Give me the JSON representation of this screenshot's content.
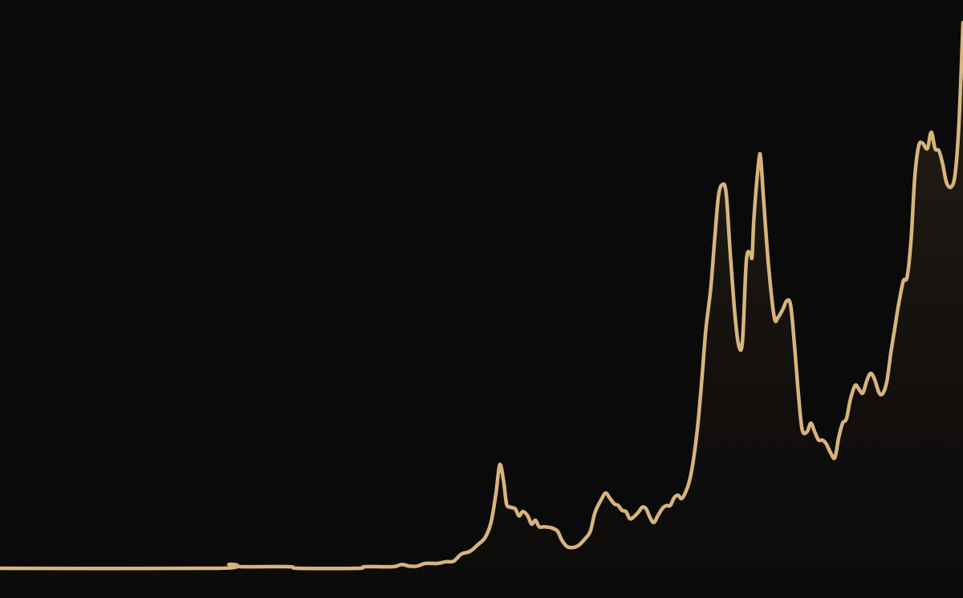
{
  "chart_data": {
    "type": "area",
    "title": "",
    "xlabel": "",
    "ylabel": "",
    "xlim": [
      0,
      100
    ],
    "ylim": [
      0,
      100
    ],
    "grid": false,
    "axes_visible": false,
    "legend": "none",
    "colors": {
      "background": "#0b0a0a",
      "line": "#d8b47c",
      "fill_top": "#2a2319",
      "fill_bottom": "#0e0c0b"
    },
    "series": [
      {
        "points": [
          [
            0,
            0
          ],
          [
            22.5,
            0
          ],
          [
            23.8,
            0.7
          ],
          [
            24.6,
            0.6
          ],
          [
            25,
            0.3
          ],
          [
            30,
            0.3
          ],
          [
            31,
            0
          ],
          [
            37.1,
            0
          ],
          [
            37.9,
            0.3
          ],
          [
            40.8,
            0.3
          ],
          [
            41.7,
            0.7
          ],
          [
            42.5,
            0.4
          ],
          [
            43.3,
            0.4
          ],
          [
            44.2,
            0.9
          ],
          [
            45.4,
            0.9
          ],
          [
            46.3,
            1.2
          ],
          [
            47.1,
            1.3
          ],
          [
            47.9,
            2.6
          ],
          [
            48.8,
            3.1
          ],
          [
            49.6,
            4.3
          ],
          [
            50.4,
            5.7
          ],
          [
            51,
            8.5
          ],
          [
            51.5,
            13.7
          ],
          [
            51.9,
            19
          ],
          [
            52.3,
            15.9
          ],
          [
            52.6,
            11.8
          ],
          [
            53,
            11.2
          ],
          [
            53.5,
            10.9
          ],
          [
            53.9,
            9.6
          ],
          [
            54.3,
            10.4
          ],
          [
            54.8,
            9.6
          ],
          [
            55.2,
            8.1
          ],
          [
            55.6,
            8.8
          ],
          [
            56,
            7.6
          ],
          [
            56.5,
            7.6
          ],
          [
            57.3,
            7.4
          ],
          [
            57.9,
            6.8
          ],
          [
            58.3,
            5.3
          ],
          [
            58.8,
            4.1
          ],
          [
            59.3,
            3.8
          ],
          [
            60,
            4.1
          ],
          [
            60.7,
            5.3
          ],
          [
            61.3,
            6.8
          ],
          [
            61.8,
            10.3
          ],
          [
            62.5,
            12.8
          ],
          [
            62.9,
            13.8
          ],
          [
            63.3,
            12.9
          ],
          [
            63.8,
            11.8
          ],
          [
            64.2,
            11.5
          ],
          [
            64.6,
            10.6
          ],
          [
            65,
            10.4
          ],
          [
            65.4,
            9.1
          ],
          [
            65.8,
            9.4
          ],
          [
            66.3,
            10.3
          ],
          [
            66.7,
            11.2
          ],
          [
            67.1,
            10.9
          ],
          [
            67.5,
            9.3
          ],
          [
            67.9,
            8.4
          ],
          [
            68.3,
            9.6
          ],
          [
            68.8,
            11
          ],
          [
            69.2,
            11.5
          ],
          [
            69.6,
            11.5
          ],
          [
            70,
            12.9
          ],
          [
            70.4,
            13.4
          ],
          [
            70.8,
            12.8
          ],
          [
            71.3,
            14.4
          ],
          [
            71.7,
            16.8
          ],
          [
            72.1,
            21
          ],
          [
            72.5,
            26.9
          ],
          [
            72.9,
            35
          ],
          [
            73.3,
            43.8
          ],
          [
            73.8,
            51.2
          ],
          [
            74.2,
            60
          ],
          [
            74.6,
            68.1
          ],
          [
            75,
            70.3
          ],
          [
            75.4,
            68.8
          ],
          [
            75.8,
            58.5
          ],
          [
            76.3,
            46.8
          ],
          [
            76.7,
            40.9
          ],
          [
            77.1,
            41.6
          ],
          [
            77.5,
            56.3
          ],
          [
            77.9,
            57.8
          ],
          [
            78.1,
            57.1
          ],
          [
            78.3,
            64.4
          ],
          [
            78.8,
            74.7
          ],
          [
            79,
            75
          ],
          [
            79.3,
            67.4
          ],
          [
            79.8,
            55.6
          ],
          [
            80.4,
            46
          ],
          [
            80.8,
            46
          ],
          [
            81.3,
            47.5
          ],
          [
            81.7,
            49
          ],
          [
            82.1,
            48.2
          ],
          [
            82.5,
            40.9
          ],
          [
            82.9,
            32.1
          ],
          [
            83.3,
            25.4
          ],
          [
            83.8,
            25
          ],
          [
            84.2,
            26.6
          ],
          [
            84.6,
            25
          ],
          [
            85,
            23.5
          ],
          [
            85.4,
            23.5
          ],
          [
            85.8,
            22.8
          ],
          [
            86.3,
            21
          ],
          [
            86.7,
            20.3
          ],
          [
            87.1,
            24
          ],
          [
            87.5,
            26.6
          ],
          [
            87.9,
            27.4
          ],
          [
            88.3,
            30.9
          ],
          [
            88.8,
            33.5
          ],
          [
            89.2,
            32.8
          ],
          [
            89.6,
            32.1
          ],
          [
            90,
            34.3
          ],
          [
            90.4,
            35.7
          ],
          [
            90.8,
            34.7
          ],
          [
            91.3,
            32.1
          ],
          [
            91.7,
            32.1
          ],
          [
            92.1,
            34.3
          ],
          [
            92.5,
            39.4
          ],
          [
            92.9,
            43.8
          ],
          [
            93.3,
            48.2
          ],
          [
            93.8,
            52.6
          ],
          [
            94.2,
            53.4
          ],
          [
            94.6,
            60
          ],
          [
            95,
            71.8
          ],
          [
            95.4,
            77.4
          ],
          [
            95.8,
            77.9
          ],
          [
            96.3,
            76.9
          ],
          [
            96.7,
            79.9
          ],
          [
            97.1,
            76.9
          ],
          [
            97.5,
            76.5
          ],
          [
            97.9,
            74
          ],
          [
            98.3,
            70.6
          ],
          [
            98.8,
            69.9
          ],
          [
            99.2,
            72.5
          ],
          [
            99.6,
            82.1
          ],
          [
            100,
            100
          ]
        ]
      }
    ]
  }
}
